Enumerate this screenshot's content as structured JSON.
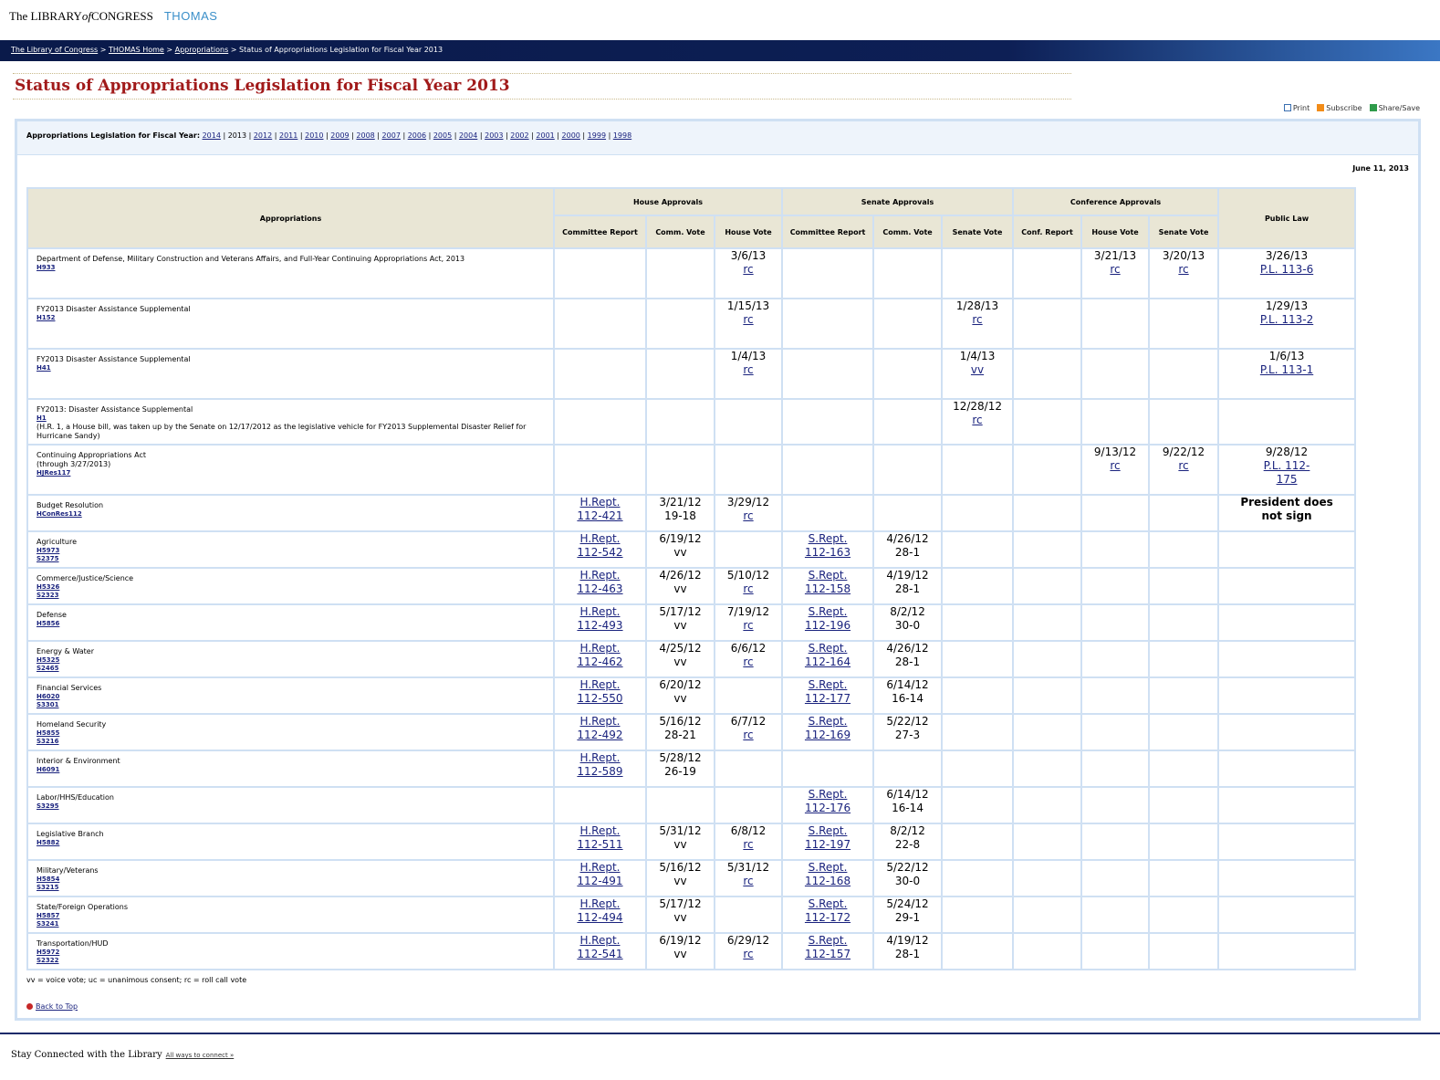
{
  "header": {
    "logo_prefix": "The LIBRARY",
    "logo_of": "of",
    "logo_suffix": "CONGRESS",
    "thomas": "THOMAS"
  },
  "breadcrumb": {
    "items": [
      "The Library of Congress",
      "THOMAS Home",
      "Appropriations"
    ],
    "separator": ">",
    "current": "Status of Appropriations Legislation for Fiscal Year 2013"
  },
  "page_title": "Status of Appropriations Legislation for Fiscal Year 2013",
  "tools": {
    "print": "Print",
    "subscribe": "Subscribe",
    "share": "Share/Save"
  },
  "year_nav": {
    "label": "Appropriations Legislation for Fiscal Year:",
    "years": [
      "2014",
      "2013",
      "2012",
      "2011",
      "2010",
      "2009",
      "2008",
      "2007",
      "2006",
      "2005",
      "2004",
      "2003",
      "2002",
      "2001",
      "2000",
      "1999",
      "1998"
    ],
    "current": "2013"
  },
  "updated_date": "June 11, 2013",
  "table": {
    "headers": {
      "appropriations": "Appropriations",
      "house_group": "House Approvals",
      "senate_group": "Senate Approvals",
      "conference_group": "Conference Approvals",
      "public_law": "Public Law",
      "committee_report": "Committee Report",
      "comm_vote": "Comm. Vote",
      "house_vote": "House Vote",
      "senate_vote": "Senate Vote",
      "conf_report": "Conf. Report"
    },
    "rows": [
      {
        "name": "Department of Defense, Military Construction and Veterans Affairs, and Full-Year Continuing Appropriations Act, 2013",
        "bills": [
          "H933"
        ],
        "h_vote": [
          "3/6/13",
          "rc"
        ],
        "c_house": [
          "3/21/13",
          "rc"
        ],
        "c_senate": [
          "3/20/13",
          "rc"
        ],
        "pl": [
          "3/26/13",
          "P.L. 113-6"
        ]
      },
      {
        "name": "FY2013 Disaster Assistance Supplemental",
        "bills": [
          "H152"
        ],
        "h_vote": [
          "1/15/13",
          "rc"
        ],
        "s_vote": [
          "1/28/13",
          "rc"
        ],
        "pl": [
          "1/29/13",
          "P.L. 113-2"
        ]
      },
      {
        "name": "FY2013 Disaster Assistance Supplemental",
        "bills": [
          "H41"
        ],
        "h_vote": [
          "1/4/13",
          "rc"
        ],
        "s_vote": [
          "1/4/13",
          "vv"
        ],
        "pl": [
          "1/6/13",
          "P.L. 113-1"
        ]
      },
      {
        "name": "FY2013: Disaster Assistance Supplemental",
        "bills": [
          "H1"
        ],
        "note": "(H.R. 1, a House bill, was taken up by the Senate on 12/17/2012 as the legislative vehicle for FY2013 Supplemental Disaster Relief for Hurricane Sandy)",
        "s_vote": [
          "12/28/12",
          "rc"
        ]
      },
      {
        "name": "Continuing Appropriations Act",
        "note": "(through 3/27/2013)",
        "bills": [
          "HJRes117"
        ],
        "c_house": [
          "9/13/12",
          "rc"
        ],
        "c_senate": [
          "9/22/12",
          "rc"
        ],
        "pl": [
          "9/28/12",
          "P.L. 112-175"
        ]
      },
      {
        "name": "Budget Resolution",
        "bills": [
          "HConRes112"
        ],
        "h_rep": [
          "H.Rept.",
          "112-421"
        ],
        "h_comm": [
          "3/21/12",
          "19-18"
        ],
        "h_vote": [
          "3/29/12",
          "rc"
        ],
        "pl_text": "President does not sign"
      },
      {
        "name": "Agriculture",
        "bills": [
          "H5973",
          "S2375"
        ],
        "h_rep": [
          "H.Rept.",
          "112-542"
        ],
        "h_comm": [
          "6/19/12",
          "vv"
        ],
        "s_rep": [
          "S.Rept.",
          "112-163"
        ],
        "s_comm": [
          "4/26/12",
          "28-1"
        ]
      },
      {
        "name": "Commerce/Justice/Science",
        "bills": [
          "H5326",
          "S2323"
        ],
        "h_rep": [
          "H.Rept.",
          "112-463"
        ],
        "h_comm": [
          "4/26/12",
          "vv"
        ],
        "h_vote": [
          "5/10/12",
          "rc"
        ],
        "s_rep": [
          "S.Rept.",
          "112-158"
        ],
        "s_comm": [
          "4/19/12",
          "28-1"
        ]
      },
      {
        "name": "Defense",
        "bills": [
          "H5856"
        ],
        "h_rep": [
          "H.Rept.",
          "112-493"
        ],
        "h_comm": [
          "5/17/12",
          "vv"
        ],
        "h_vote": [
          "7/19/12",
          "rc"
        ],
        "s_rep": [
          "S.Rept.",
          "112-196"
        ],
        "s_comm": [
          "8/2/12",
          "30-0"
        ]
      },
      {
        "name": "Energy & Water",
        "bills": [
          "H5325",
          "S2465"
        ],
        "h_rep": [
          "H.Rept.",
          "112-462"
        ],
        "h_comm": [
          "4/25/12",
          "vv"
        ],
        "h_vote": [
          "6/6/12",
          "rc"
        ],
        "s_rep": [
          "S.Rept.",
          "112-164"
        ],
        "s_comm": [
          "4/26/12",
          "28-1"
        ]
      },
      {
        "name": "Financial Services",
        "bills": [
          "H6020",
          "S3301"
        ],
        "h_rep": [
          "H.Rept.",
          "112-550"
        ],
        "h_comm": [
          "6/20/12",
          "vv"
        ],
        "s_rep": [
          "S.Rept.",
          "112-177"
        ],
        "s_comm": [
          "6/14/12",
          "16-14"
        ]
      },
      {
        "name": "Homeland Security",
        "bills": [
          "H5855",
          "S3216"
        ],
        "h_rep": [
          "H.Rept.",
          "112-492"
        ],
        "h_comm": [
          "5/16/12",
          "28-21"
        ],
        "h_vote": [
          "6/7/12",
          "rc"
        ],
        "s_rep": [
          "S.Rept.",
          "112-169"
        ],
        "s_comm": [
          "5/22/12",
          "27-3"
        ]
      },
      {
        "name": "Interior & Environment",
        "bills": [
          "H6091"
        ],
        "h_rep": [
          "H.Rept.",
          "112-589"
        ],
        "h_comm": [
          "5/28/12",
          "26-19"
        ]
      },
      {
        "name": "Labor/HHS/Education",
        "bills": [
          "S3295"
        ],
        "s_rep": [
          "S.Rept.",
          "112-176"
        ],
        "s_comm": [
          "6/14/12",
          "16-14"
        ]
      },
      {
        "name": "Legislative Branch",
        "bills": [
          "H5882"
        ],
        "h_rep": [
          "H.Rept.",
          "112-511"
        ],
        "h_comm": [
          "5/31/12",
          "vv"
        ],
        "h_vote": [
          "6/8/12",
          "rc"
        ],
        "s_rep": [
          "S.Rept.",
          "112-197"
        ],
        "s_comm": [
          "8/2/12",
          "22-8"
        ]
      },
      {
        "name": "Military/Veterans",
        "bills": [
          "H5854",
          "S3215"
        ],
        "h_rep": [
          "H.Rept.",
          "112-491"
        ],
        "h_comm": [
          "5/16/12",
          "vv"
        ],
        "h_vote": [
          "5/31/12",
          "rc"
        ],
        "s_rep": [
          "S.Rept.",
          "112-168"
        ],
        "s_comm": [
          "5/22/12",
          "30-0"
        ]
      },
      {
        "name": "State/Foreign Operations",
        "bills": [
          "H5857",
          "S3241"
        ],
        "h_rep": [
          "H.Rept.",
          "112-494"
        ],
        "h_comm": [
          "5/17/12",
          "vv"
        ],
        "s_rep": [
          "S.Rept.",
          "112-172"
        ],
        "s_comm": [
          "5/24/12",
          "29-1"
        ]
      },
      {
        "name": "Transportation/HUD",
        "bills": [
          "H5972",
          "S2322"
        ],
        "h_rep": [
          "H.Rept.",
          "112-541"
        ],
        "h_comm": [
          "6/19/12",
          "vv"
        ],
        "h_vote": [
          "6/29/12",
          "rc"
        ],
        "s_rep": [
          "S.Rept.",
          "112-157"
        ],
        "s_comm": [
          "4/19/12",
          "28-1"
        ]
      }
    ]
  },
  "legend": "vv = voice vote; uc = unanimous consent; rc = roll call vote",
  "back_to_top": "Back to Top",
  "footer": {
    "stay_connected": "Stay Connected with the Library",
    "all_ways": "All ways to connect »"
  }
}
